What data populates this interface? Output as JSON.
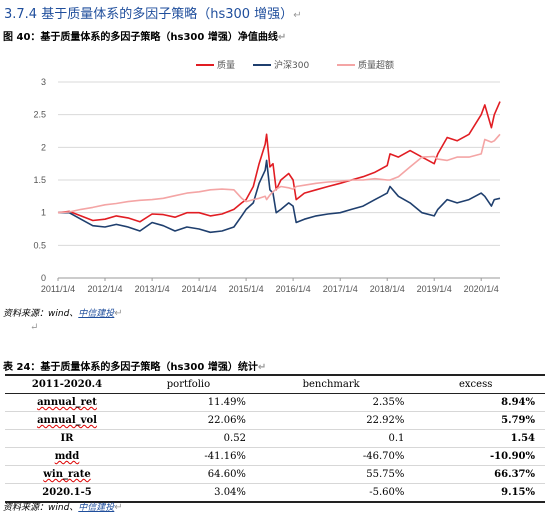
{
  "heading": {
    "number": "3.7.4",
    "title": "基于质量体系的多因子策略（hs300 增强）"
  },
  "figure_caption": "图 40：基于质量体系的多因子策略（hs300 增强）净值曲线",
  "source": {
    "prefix": "资料来源：wind、",
    "link": "中信建投"
  },
  "table_caption": "表 24：基于质量体系的多因子策略（hs300 增强）统计",
  "table": {
    "header": [
      "2011-2020.4",
      "portfolio",
      "benchmark",
      "excess"
    ],
    "rows": [
      [
        "annual_ret",
        "11.49%",
        "2.35%",
        "8.94%"
      ],
      [
        "annual_vol",
        "22.06%",
        "22.92%",
        "5.79%"
      ],
      [
        "IR",
        "0.52",
        "0.1",
        "1.54"
      ],
      [
        "mdd",
        "-41.16%",
        "-46.70%",
        "-10.90%"
      ],
      [
        "win_rate",
        "64.60%",
        "55.75%",
        "66.37%"
      ],
      [
        "2020.1-5",
        "3.04%",
        "-5.60%",
        "9.15%"
      ]
    ]
  },
  "chart_data": {
    "type": "line",
    "title": "",
    "xlabel": "",
    "ylabel": "",
    "ylim": [
      0,
      3
    ],
    "yticks": [
      0,
      0.5,
      1,
      1.5,
      2,
      2.5,
      3
    ],
    "xlim": [
      "2011-01-04",
      "2020-05-29"
    ],
    "xtick_labels": [
      "2011/1/4",
      "2012/1/4",
      "2013/1/4",
      "2014/1/4",
      "2015/1/4",
      "2016/1/4",
      "2017/1/4",
      "2018/1/4",
      "2019/1/4",
      "2020/1/4"
    ],
    "grid": "horizontal",
    "legend_position": "top-center",
    "x": [
      "2011-01-04",
      "2011-04-01",
      "2011-07-01",
      "2011-10-01",
      "2012-01-04",
      "2012-04-01",
      "2012-07-01",
      "2012-10-01",
      "2013-01-04",
      "2013-04-01",
      "2013-07-01",
      "2013-10-01",
      "2014-01-04",
      "2014-04-01",
      "2014-07-01",
      "2014-10-01",
      "2014-12-01",
      "2015-01-04",
      "2015-03-01",
      "2015-04-15",
      "2015-06-01",
      "2015-06-12",
      "2015-07-08",
      "2015-08-01",
      "2015-08-26",
      "2015-10-01",
      "2015-12-01",
      "2016-01-04",
      "2016-01-28",
      "2016-04-01",
      "2016-07-01",
      "2016-10-01",
      "2017-01-04",
      "2017-04-01",
      "2017-07-01",
      "2017-10-01",
      "2018-01-04",
      "2018-01-26",
      "2018-04-01",
      "2018-07-01",
      "2018-10-01",
      "2019-01-04",
      "2019-02-01",
      "2019-04-15",
      "2019-07-01",
      "2019-10-01",
      "2020-01-04",
      "2020-02-01",
      "2020-03-23",
      "2020-04-15",
      "2020-05-29"
    ],
    "series": [
      {
        "name": "质量",
        "color": "#e11d23",
        "values": [
          1.0,
          1.02,
          0.95,
          0.88,
          0.9,
          0.95,
          0.92,
          0.86,
          0.98,
          0.97,
          0.93,
          1.0,
          1.0,
          0.95,
          0.98,
          1.05,
          1.15,
          1.2,
          1.4,
          1.75,
          2.05,
          2.2,
          1.7,
          1.75,
          1.35,
          1.5,
          1.6,
          1.5,
          1.2,
          1.3,
          1.35,
          1.4,
          1.45,
          1.5,
          1.55,
          1.62,
          1.72,
          1.9,
          1.85,
          1.95,
          1.85,
          1.75,
          1.9,
          2.15,
          2.1,
          2.2,
          2.5,
          2.65,
          2.3,
          2.5,
          2.7
        ]
      },
      {
        "name": "沪深300",
        "color": "#1f3f6e",
        "values": [
          1.0,
          1.0,
          0.9,
          0.8,
          0.78,
          0.82,
          0.78,
          0.72,
          0.85,
          0.8,
          0.72,
          0.78,
          0.75,
          0.7,
          0.72,
          0.78,
          0.95,
          1.05,
          1.15,
          1.45,
          1.65,
          1.8,
          1.35,
          1.3,
          1.0,
          1.05,
          1.15,
          1.1,
          0.85,
          0.9,
          0.95,
          0.98,
          1.0,
          1.05,
          1.1,
          1.2,
          1.3,
          1.4,
          1.25,
          1.15,
          1.0,
          0.95,
          1.05,
          1.2,
          1.15,
          1.2,
          1.3,
          1.25,
          1.1,
          1.2,
          1.22
        ]
      },
      {
        "name": "质量超额",
        "color": "#f4a5a5",
        "values": [
          1.0,
          1.01,
          1.05,
          1.08,
          1.12,
          1.14,
          1.17,
          1.19,
          1.2,
          1.22,
          1.26,
          1.3,
          1.32,
          1.35,
          1.36,
          1.35,
          1.22,
          1.17,
          1.2,
          1.22,
          1.25,
          1.2,
          1.27,
          1.32,
          1.36,
          1.4,
          1.38,
          1.36,
          1.4,
          1.42,
          1.45,
          1.47,
          1.48,
          1.5,
          1.5,
          1.52,
          1.5,
          1.5,
          1.55,
          1.7,
          1.85,
          1.86,
          1.82,
          1.8,
          1.85,
          1.85,
          1.9,
          2.12,
          2.08,
          2.1,
          2.2
        ]
      }
    ]
  }
}
